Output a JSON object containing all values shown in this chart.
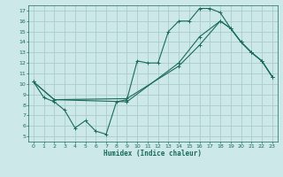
{
  "title": "",
  "xlabel": "Humidex (Indice chaleur)",
  "bg_color": "#cce8e8",
  "grid_color": "#aacccc",
  "line_color": "#1a6b5a",
  "xlim": [
    -0.5,
    23.5
  ],
  "ylim": [
    4.5,
    17.5
  ],
  "xticks": [
    0,
    1,
    2,
    3,
    4,
    5,
    6,
    7,
    8,
    9,
    10,
    11,
    12,
    13,
    14,
    15,
    16,
    17,
    18,
    19,
    20,
    21,
    22,
    23
  ],
  "yticks": [
    5,
    6,
    7,
    8,
    9,
    10,
    11,
    12,
    13,
    14,
    15,
    16,
    17
  ],
  "line1_x": [
    0,
    1,
    2,
    3,
    4,
    5,
    6,
    7,
    8,
    9,
    10,
    11,
    12,
    13,
    14,
    15,
    16,
    17,
    18,
    19,
    20,
    21,
    22,
    23
  ],
  "line1_y": [
    10.2,
    8.7,
    8.3,
    7.5,
    5.8,
    6.5,
    5.5,
    5.2,
    8.3,
    8.5,
    12.2,
    12.0,
    12.0,
    15.0,
    16.0,
    16.0,
    17.2,
    17.2,
    16.8,
    15.3,
    14.0,
    13.0,
    12.2,
    10.7
  ],
  "line2_x": [
    0,
    2,
    9,
    14,
    16,
    18,
    19,
    20,
    21,
    22,
    23
  ],
  "line2_y": [
    10.2,
    8.5,
    8.6,
    11.7,
    13.7,
    16.0,
    15.3,
    14.0,
    13.0,
    12.2,
    10.7
  ],
  "line3_x": [
    0,
    2,
    9,
    14,
    16,
    18,
    19,
    20,
    21,
    22,
    23
  ],
  "line3_y": [
    10.2,
    8.5,
    8.3,
    12.0,
    14.5,
    16.0,
    15.3,
    14.0,
    13.0,
    12.2,
    10.7
  ]
}
